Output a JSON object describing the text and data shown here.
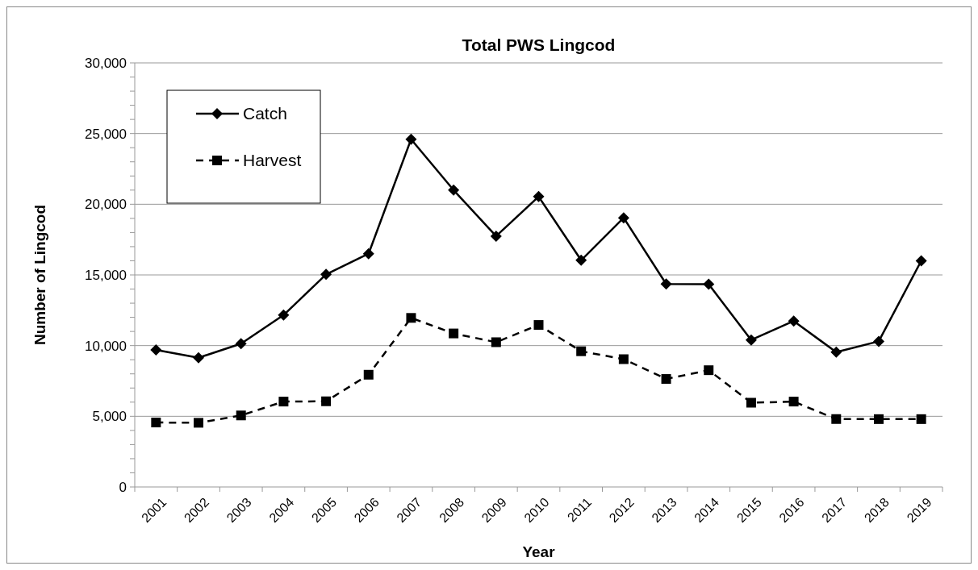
{
  "chart_data": {
    "type": "line",
    "title": "Total PWS Lingcod",
    "xlabel": "Year",
    "ylabel": "Number of Lingcod",
    "categories": [
      "2001",
      "2002",
      "2003",
      "2004",
      "2005",
      "2006",
      "2007",
      "2008",
      "2009",
      "2010",
      "2011",
      "2012",
      "2013",
      "2014",
      "2015",
      "2016",
      "2017",
      "2018",
      "2019"
    ],
    "series": [
      {
        "name": "Catch",
        "color": "#000000",
        "marker": "diamond",
        "line_style": "solid",
        "values": [
          9700,
          9140,
          10140,
          12160,
          15040,
          16500,
          24600,
          21000,
          17740,
          20540,
          16040,
          19040,
          14360,
          14340,
          10400,
          11740,
          9540,
          10300,
          16000
        ]
      },
      {
        "name": "Harvest",
        "color": "#000000",
        "marker": "square",
        "line_style": "dashed",
        "values": [
          4560,
          4540,
          5060,
          6040,
          6060,
          7940,
          11960,
          10860,
          10240,
          11460,
          9600,
          9040,
          7640,
          8260,
          5960,
          6040,
          4800,
          4800,
          4800
        ]
      }
    ],
    "ylim": [
      0,
      30000
    ],
    "yticks": [
      {
        "value": 0,
        "label": "0"
      },
      {
        "value": 1000,
        "label": null
      },
      {
        "value": 2000,
        "label": null
      },
      {
        "value": 3000,
        "label": null
      },
      {
        "value": 4000,
        "label": null
      },
      {
        "value": 5000,
        "label": "5,000"
      },
      {
        "value": 6000,
        "label": null
      },
      {
        "value": 7000,
        "label": null
      },
      {
        "value": 8000,
        "label": null
      },
      {
        "value": 9000,
        "label": null
      },
      {
        "value": 10000,
        "label": "10,000"
      },
      {
        "value": 11000,
        "label": null
      },
      {
        "value": 12000,
        "label": null
      },
      {
        "value": 13000,
        "label": null
      },
      {
        "value": 14000,
        "label": null
      },
      {
        "value": 15000,
        "label": "15,000"
      },
      {
        "value": 16000,
        "label": null
      },
      {
        "value": 17000,
        "label": null
      },
      {
        "value": 18000,
        "label": null
      },
      {
        "value": 19000,
        "label": null
      },
      {
        "value": 20000,
        "label": "20,000"
      },
      {
        "value": 21000,
        "label": null
      },
      {
        "value": 22000,
        "label": null
      },
      {
        "value": 23000,
        "label": null
      },
      {
        "value": 24000,
        "label": null
      },
      {
        "value": 25000,
        "label": "25,000"
      },
      {
        "value": 26000,
        "label": null
      },
      {
        "value": 27000,
        "label": null
      },
      {
        "value": 28000,
        "label": null
      },
      {
        "value": 29000,
        "label": null
      },
      {
        "value": 30000,
        "label": "30,000"
      }
    ],
    "grid": "y",
    "legend": "top left"
  }
}
